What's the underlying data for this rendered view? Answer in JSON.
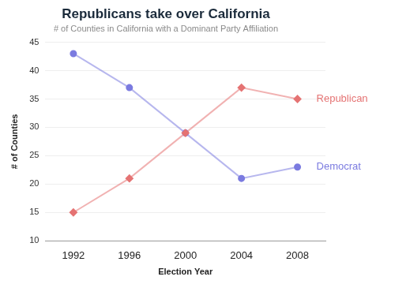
{
  "chart_data": {
    "type": "line",
    "title": "Republicans take over California",
    "subtitle": "# of Counties in California with a Dominant Party Affiliation",
    "x_label": "Election Year",
    "y_label": "# of Counties",
    "categories": [
      "1992",
      "1996",
      "2000",
      "2004",
      "2008"
    ],
    "series": [
      {
        "name": "Republican",
        "color": "#e57373",
        "marker": "diamond",
        "values": [
          15,
          21,
          29,
          37,
          35
        ]
      },
      {
        "name": "Democrat",
        "color": "#7b7be0",
        "marker": "circle",
        "values": [
          43,
          37,
          29,
          21,
          23
        ]
      }
    ],
    "ylim": [
      10,
      45
    ],
    "yticks": [
      10,
      15,
      20,
      25,
      30,
      35,
      40,
      45
    ],
    "grid": true
  }
}
